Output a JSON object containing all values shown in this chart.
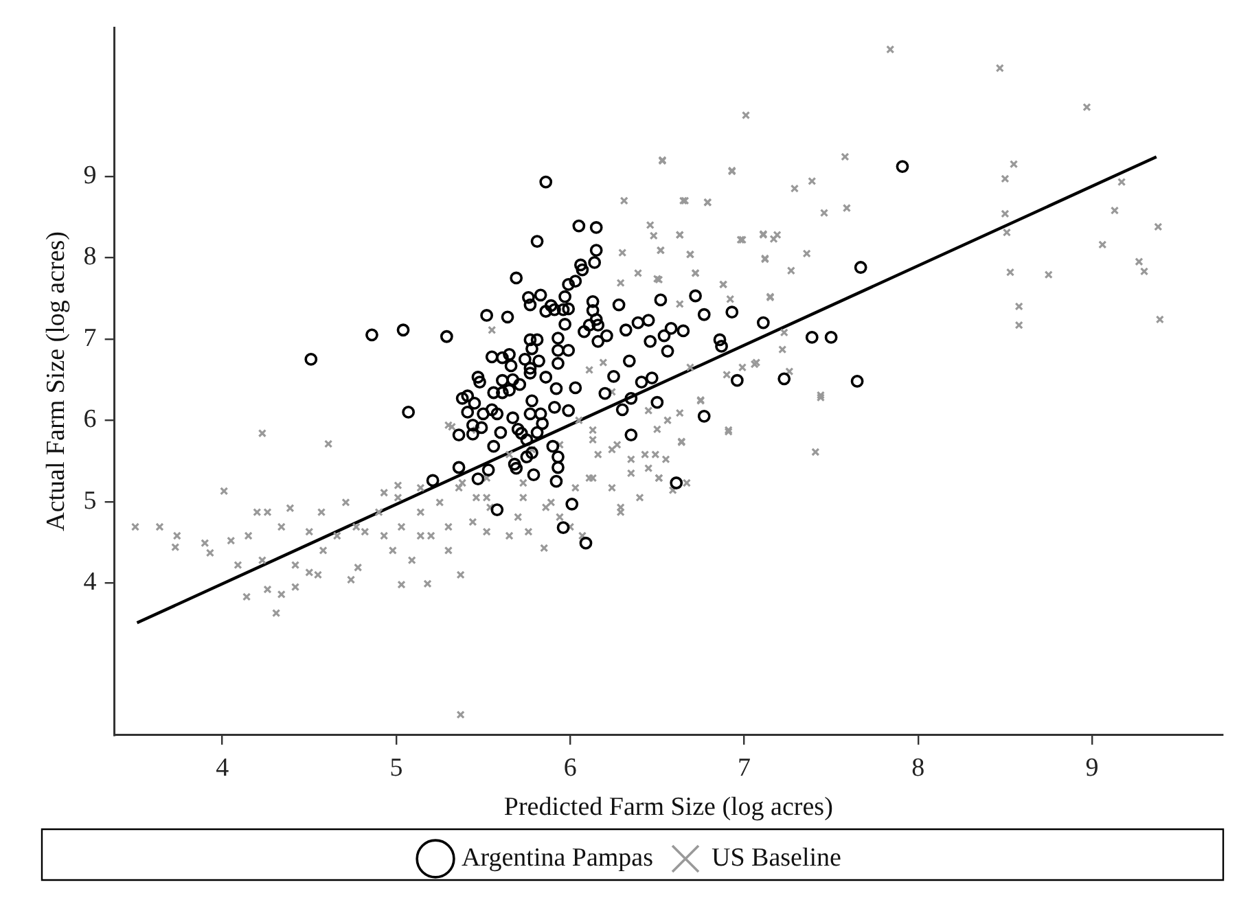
{
  "chart_data": {
    "type": "scatter",
    "xlabel": "Predicted Farm Size (log acres)",
    "ylabel": "Actual Farm Size (log acres)",
    "xlim": [
      3.38,
      9.75
    ],
    "ylim": [
      2.13,
      10.83
    ],
    "xticks": [
      4,
      5,
      6,
      7,
      8,
      9
    ],
    "yticks": [
      4,
      5,
      6,
      7,
      8,
      9
    ],
    "grid": false,
    "legend": "bottom",
    "series": [
      {
        "name": "Argentina Pampas",
        "color": "#000000",
        "marker": "circle",
        "x": [
          4.86,
          5.04,
          5.29,
          5.86,
          6.05,
          6.15,
          5.81,
          6.15,
          6.14,
          6.06,
          6.07,
          6.03,
          5.99,
          5.69,
          5.76,
          5.83,
          5.77,
          5.89,
          5.86,
          5.91,
          5.96,
          5.99,
          5.97,
          5.97,
          6.13,
          6.13,
          6.15,
          6.16,
          6.11,
          6.08,
          6.16,
          6.21,
          6.28,
          6.52,
          6.72,
          6.77,
          6.93,
          7.11,
          6.39,
          6.45,
          6.32,
          6.46,
          6.54,
          6.58,
          6.65,
          6.86,
          6.87,
          6.56,
          6.34,
          6.25,
          6.41,
          6.47,
          6.35,
          6.3,
          6.5,
          6.2,
          6.96,
          7.23,
          6.77,
          6.35,
          6.61,
          5.77,
          5.81,
          5.78,
          5.93,
          5.93,
          5.99,
          5.52,
          5.64,
          5.55,
          5.61,
          5.65,
          5.66,
          5.74,
          5.82,
          5.77,
          5.77,
          5.86,
          5.93,
          5.47,
          5.48,
          5.61,
          5.67,
          5.56,
          5.61,
          5.65,
          5.71,
          5.78,
          5.91,
          5.99,
          6.03,
          5.92,
          5.38,
          5.41,
          5.45,
          5.41,
          5.5,
          5.55,
          5.58,
          5.6,
          5.67,
          5.7,
          5.77,
          5.83,
          5.84,
          5.81,
          5.72,
          5.75,
          5.9,
          5.93,
          5.93,
          5.92,
          5.78,
          5.75,
          5.68,
          5.69,
          5.53,
          5.56,
          5.44,
          5.36,
          5.49,
          5.21,
          5.36,
          5.47,
          5.07,
          5.58,
          5.79,
          6.01,
          5.96,
          6.09,
          5.44,
          4.51,
          7.91,
          7.67,
          7.39,
          7.5,
          7.65
        ],
        "values": [
          7.05,
          7.11,
          7.03,
          8.93,
          8.39,
          8.37,
          8.2,
          8.09,
          7.94,
          7.91,
          7.85,
          7.71,
          7.67,
          7.75,
          7.51,
          7.54,
          7.42,
          7.41,
          7.34,
          7.36,
          7.36,
          7.37,
          7.52,
          7.18,
          7.46,
          7.35,
          7.24,
          7.17,
          7.17,
          7.09,
          6.97,
          7.04,
          7.42,
          7.48,
          7.53,
          7.3,
          7.33,
          7.2,
          7.2,
          7.23,
          7.11,
          6.97,
          7.04,
          7.13,
          7.1,
          6.99,
          6.91,
          6.85,
          6.73,
          6.54,
          6.47,
          6.52,
          6.27,
          6.13,
          6.22,
          6.33,
          6.49,
          6.51,
          6.05,
          5.82,
          5.23,
          6.99,
          6.99,
          6.88,
          7.01,
          6.86,
          6.86,
          7.29,
          7.27,
          6.78,
          6.77,
          6.81,
          6.67,
          6.75,
          6.73,
          6.64,
          6.58,
          6.53,
          6.7,
          6.53,
          6.47,
          6.49,
          6.5,
          6.34,
          6.34,
          6.37,
          6.44,
          6.24,
          6.16,
          6.12,
          6.4,
          6.39,
          6.27,
          6.3,
          6.21,
          6.1,
          6.08,
          6.13,
          6.08,
          5.85,
          6.03,
          5.89,
          6.08,
          6.08,
          5.96,
          5.85,
          5.84,
          5.76,
          5.68,
          5.55,
          5.42,
          5.25,
          5.6,
          5.55,
          5.46,
          5.41,
          5.39,
          5.68,
          5.83,
          5.82,
          5.91,
          5.26,
          5.42,
          5.28,
          6.1,
          4.9,
          5.33,
          4.97,
          4.68,
          4.49,
          5.94,
          6.75,
          9.12,
          7.88,
          7.02,
          7.02,
          6.48
        ]
      },
      {
        "name": "US Baseline",
        "color": "#999999",
        "marker": "cross",
        "x": [
          7.84,
          8.47,
          8.97,
          7.01,
          6.53,
          6.93,
          7.58,
          7.39,
          7.29,
          6.65,
          6.79,
          7.46,
          7.59,
          8.55,
          8.5,
          8.5,
          8.51,
          9.17,
          9.13,
          9.38,
          9.06,
          9.27,
          9.3,
          8.53,
          8.75,
          8.58,
          8.58,
          9.39,
          6.48,
          6.63,
          6.99,
          7.11,
          7.19,
          7.17,
          7.36,
          7.12,
          7.27,
          6.69,
          6.52,
          6.72,
          6.5,
          6.88,
          6.92,
          7.15,
          6.63,
          7.23,
          7.22,
          6.99,
          7.06,
          6.9,
          7.26,
          7.44,
          7.44,
          6.91,
          7.41,
          6.75,
          6.63,
          6.64,
          6.49,
          6.55,
          6.51,
          6.59,
          6.67,
          6.5,
          3.5,
          3.64,
          3.74,
          3.73,
          3.9,
          3.93,
          4.01,
          4.23,
          4.61,
          4.05,
          4.09,
          4.14,
          4.31,
          4.2,
          4.26,
          4.39,
          4.34,
          4.15,
          4.23,
          4.26,
          4.34,
          4.42,
          4.42,
          4.5,
          4.55,
          4.58,
          4.57,
          4.71,
          4.66,
          4.74,
          4.78,
          4.82,
          4.9,
          4.93,
          5.01,
          4.98,
          5.03,
          5.09,
          5.14,
          5.18,
          5.2,
          5.3,
          5.25,
          5.3,
          5.37,
          5.37,
          5.44,
          5.46,
          5.52,
          5.54,
          5.65,
          5.73,
          5.7,
          5.85,
          5.89,
          6.0,
          6.07,
          6.11,
          6.16,
          6.27,
          6.29,
          6.4,
          6.43,
          6.51,
          6.13,
          5.36,
          4.93,
          5.03,
          4.77,
          4.5,
          5.14,
          5.52,
          5.94,
          6.35,
          5.78,
          5.65,
          6.53,
          6.93,
          6.31,
          6.66,
          6.79,
          6.46,
          6.63,
          6.98,
          7.11,
          6.3,
          6.52,
          6.69,
          6.39,
          6.51,
          6.72,
          6.88,
          6.29,
          7.15,
          7.12,
          5.55,
          6.91,
          6.64,
          6.75,
          7.07,
          6.11,
          6.19,
          6.24,
          6.45,
          6.56,
          6.05,
          6.13,
          6.24,
          6.35,
          6.45,
          6.13,
          6.03,
          6.24,
          6.29,
          5.86,
          5.73,
          5.52,
          5.38,
          5.14,
          5.01,
          5.3,
          5.76,
          5.94,
          5.46,
          5.32,
          6.69
        ],
        "values": [
          10.56,
          10.33,
          9.85,
          9.75,
          9.19,
          9.06,
          9.24,
          8.94,
          8.85,
          8.7,
          8.68,
          8.55,
          8.61,
          9.15,
          8.97,
          8.54,
          8.31,
          8.93,
          8.58,
          8.38,
          8.16,
          7.95,
          7.83,
          7.82,
          7.79,
          7.4,
          7.17,
          7.24,
          8.27,
          8.28,
          8.22,
          8.29,
          8.28,
          8.23,
          8.05,
          7.98,
          7.84,
          8.04,
          8.09,
          7.81,
          7.74,
          7.67,
          7.49,
          7.52,
          7.43,
          7.08,
          6.87,
          6.65,
          6.69,
          6.56,
          6.6,
          6.31,
          6.28,
          5.86,
          5.61,
          6.25,
          6.09,
          5.74,
          5.58,
          5.52,
          5.29,
          5.14,
          5.23,
          5.89,
          4.69,
          4.69,
          4.58,
          4.44,
          4.49,
          4.37,
          5.13,
          5.84,
          5.71,
          4.52,
          4.22,
          3.83,
          3.63,
          4.87,
          4.87,
          4.92,
          4.69,
          4.58,
          4.28,
          3.92,
          3.86,
          3.95,
          4.22,
          4.13,
          4.1,
          4.4,
          4.87,
          4.99,
          4.58,
          4.04,
          4.19,
          4.63,
          4.87,
          4.58,
          5.2,
          4.4,
          3.98,
          4.28,
          4.87,
          3.99,
          4.58,
          5.94,
          4.99,
          4.4,
          4.1,
          2.38,
          4.75,
          5.05,
          4.63,
          4.93,
          4.58,
          5.23,
          4.81,
          4.43,
          4.99,
          4.69,
          4.58,
          5.29,
          5.58,
          5.7,
          4.87,
          5.05,
          5.58,
          5.29,
          5.88,
          5.17,
          5.11,
          4.69,
          4.69,
          4.63,
          4.58,
          5.29,
          5.7,
          5.35,
          5.64,
          5.58,
          9.2,
          9.07,
          8.7,
          8.7,
          8.68,
          8.4,
          8.28,
          8.22,
          8.28,
          8.06,
          8.09,
          8.04,
          7.81,
          7.73,
          7.81,
          7.67,
          7.69,
          7.51,
          7.99,
          7.11,
          5.88,
          5.73,
          6.24,
          6.71,
          6.62,
          6.71,
          6.35,
          6.12,
          6.0,
          6.0,
          5.76,
          5.64,
          5.52,
          5.41,
          5.29,
          5.17,
          5.17,
          4.93,
          4.93,
          5.05,
          5.05,
          5.23,
          5.17,
          5.05,
          4.69,
          4.63,
          4.81,
          5.88,
          5.92,
          6.65
        ]
      },
      {
        "type": "line",
        "color": "#000000",
        "marker": "none",
        "x": [
          3.51,
          9.37
        ],
        "values": [
          3.51,
          9.24
        ]
      }
    ]
  }
}
